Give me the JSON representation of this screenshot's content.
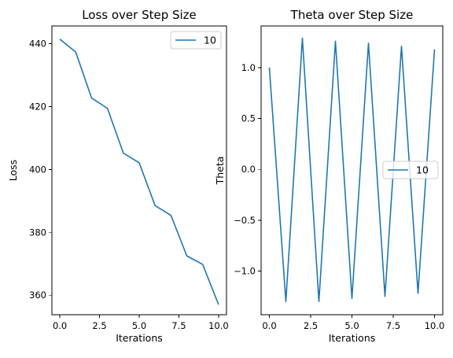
{
  "colors": {
    "series": "#1f77b4"
  },
  "chart_data": [
    {
      "type": "line",
      "title": "Loss over Step Size",
      "xlabel": "Iterations",
      "ylabel": "Loss",
      "xlim": [
        -0.5,
        10.5
      ],
      "ylim": [
        353.8,
        445.6
      ],
      "xticks": [
        0,
        2.5,
        5,
        7.5,
        10
      ],
      "xtick_labels": [
        "0.0",
        "2.5",
        "5.0",
        "7.5",
        "10.0"
      ],
      "yticks": [
        360,
        380,
        400,
        420,
        440
      ],
      "ytick_labels": [
        "360",
        "380",
        "400",
        "420",
        "440"
      ],
      "legend_position": "upper right",
      "series": [
        {
          "name": "10",
          "x": [
            0,
            1,
            2,
            3,
            4,
            5,
            6,
            7,
            8,
            9,
            10
          ],
          "values": [
            441.4,
            437.3,
            422.7,
            419.4,
            405.2,
            402.1,
            388.5,
            385.4,
            372.5,
            369.8,
            357.0
          ]
        }
      ]
    },
    {
      "type": "line",
      "title": "Theta over Step Size",
      "xlabel": "Iterations",
      "ylabel": "Theta",
      "xlim": [
        -0.5,
        10.5
      ],
      "ylim": [
        -1.43,
        1.41
      ],
      "xticks": [
        0,
        2.5,
        5,
        7.5,
        10
      ],
      "xtick_labels": [
        "0.0",
        "2.5",
        "5.0",
        "7.5",
        "10.0"
      ],
      "yticks": [
        -1.0,
        -0.5,
        0.0,
        0.5,
        1.0
      ],
      "ytick_labels": [
        "−1.0",
        "−0.5",
        "0.0",
        "0.5",
        "1.0"
      ],
      "legend_position": "center right",
      "series": [
        {
          "name": "10",
          "x": [
            0,
            1,
            2,
            3,
            4,
            5,
            6,
            7,
            8,
            9,
            10
          ],
          "values": [
            1.0,
            -1.3,
            1.29,
            -1.3,
            1.26,
            -1.27,
            1.24,
            -1.25,
            1.21,
            -1.22,
            1.18
          ]
        }
      ]
    }
  ]
}
